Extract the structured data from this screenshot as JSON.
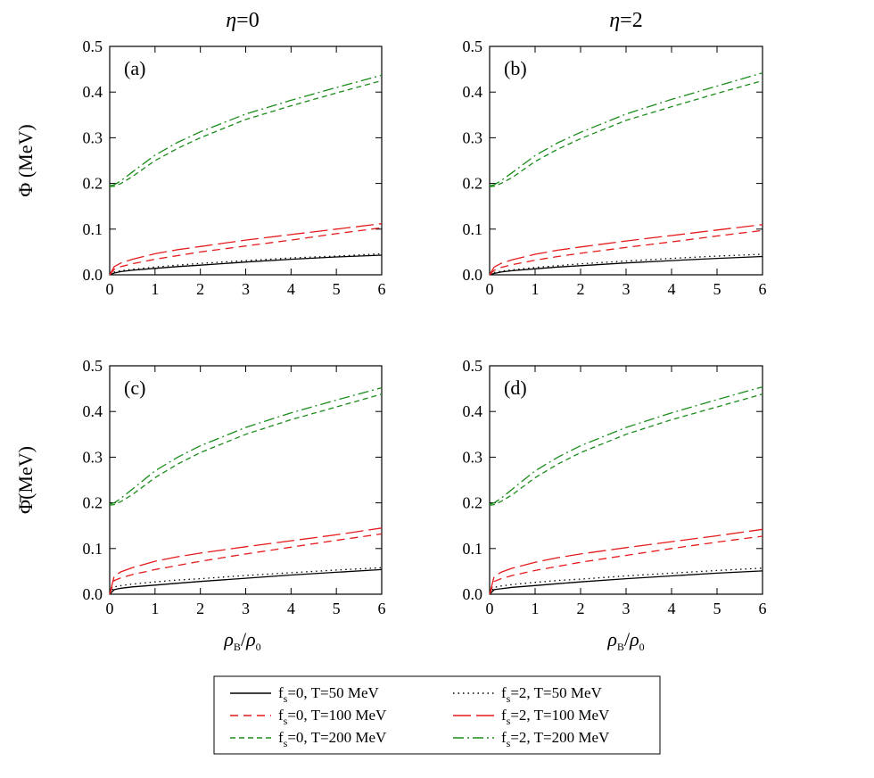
{
  "columns": [
    {
      "symbol": "η",
      "value": "=0"
    },
    {
      "symbol": "η",
      "value": "=2"
    }
  ],
  "y_labels": {
    "top": {
      "sym": "Φ",
      "unit": " (MeV)"
    },
    "bottom": {
      "sym": "Φ̄",
      "unit": "(MeV)"
    }
  },
  "x_label": {
    "rho": "ρ",
    "sub": "B",
    "slash": "/",
    "rho2": "ρ",
    "sub2": "0"
  },
  "legend": [
    {
      "prefix": "f",
      "sub": "s",
      "text": "=0, T=50 MeV",
      "color": "#000000",
      "dash": ""
    },
    {
      "prefix": "f",
      "sub": "s",
      "text": "=2, T=50 MeV",
      "color": "#000000",
      "dash": "1.5 4"
    },
    {
      "prefix": "f",
      "sub": "s",
      "text": "=0, T=100 MeV",
      "color": "#e41a1c",
      "dash": "9 6"
    },
    {
      "prefix": "f",
      "sub": "s",
      "text": "=2, T=100 MeV",
      "color": "#e41a1c",
      "dash": "20 6"
    },
    {
      "prefix": "f",
      "sub": "s",
      "text": "=0, T=200 MeV",
      "color": "#1a8c1a",
      "dash": "6 4"
    },
    {
      "prefix": "f",
      "sub": "s",
      "text": "=2, T=200 MeV",
      "color": "#1a8c1a",
      "dash": "12 4 2 4"
    }
  ],
  "chart_data": [
    {
      "type": "line",
      "label": "(a)",
      "xlim": [
        0,
        6
      ],
      "ylim": [
        0,
        0.5
      ],
      "xticks": [
        "0",
        "1",
        "2",
        "3",
        "4",
        "5",
        "6"
      ],
      "yticks": [
        "0.0",
        "0.1",
        "0.2",
        "0.3",
        "0.4",
        "0.5"
      ],
      "x": [
        0,
        0.1,
        0.25,
        0.5,
        1,
        1.5,
        2,
        3,
        4,
        5,
        6
      ],
      "series": [
        {
          "values": [
            0,
            0.004,
            0.007,
            0.01,
            0.014,
            0.018,
            0.021,
            0.028,
            0.034,
            0.039,
            0.043
          ]
        },
        {
          "values": [
            0,
            0.006,
            0.009,
            0.012,
            0.017,
            0.021,
            0.025,
            0.031,
            0.037,
            0.041,
            0.046
          ]
        },
        {
          "values": [
            0,
            0.012,
            0.018,
            0.024,
            0.034,
            0.042,
            0.05,
            0.063,
            0.076,
            0.09,
            0.103
          ]
        },
        {
          "values": [
            0,
            0.018,
            0.026,
            0.034,
            0.046,
            0.055,
            0.062,
            0.076,
            0.088,
            0.1,
            0.112
          ]
        },
        {
          "values": [
            0.193,
            0.194,
            0.2,
            0.215,
            0.25,
            0.277,
            0.3,
            0.34,
            0.37,
            0.398,
            0.425
          ]
        },
        {
          "values": [
            0.195,
            0.197,
            0.206,
            0.225,
            0.262,
            0.29,
            0.313,
            0.352,
            0.382,
            0.41,
            0.437
          ]
        }
      ]
    },
    {
      "type": "line",
      "label": "(b)",
      "xlim": [
        0,
        6
      ],
      "ylim": [
        0,
        0.5
      ],
      "xticks": [
        "0",
        "1",
        "2",
        "3",
        "4",
        "5",
        "6"
      ],
      "yticks": [
        "0.0",
        "0.1",
        "0.2",
        "0.3",
        "0.4",
        "0.5"
      ],
      "x": [
        0,
        0.1,
        0.25,
        0.5,
        1,
        1.5,
        2,
        3,
        4,
        5,
        6
      ],
      "series": [
        {
          "values": [
            0,
            0.003,
            0.006,
            0.009,
            0.013,
            0.017,
            0.02,
            0.026,
            0.031,
            0.036,
            0.04
          ]
        },
        {
          "values": [
            0,
            0.005,
            0.008,
            0.011,
            0.016,
            0.02,
            0.024,
            0.03,
            0.036,
            0.041,
            0.045
          ]
        },
        {
          "values": [
            0,
            0.01,
            0.016,
            0.022,
            0.032,
            0.04,
            0.047,
            0.06,
            0.072,
            0.085,
            0.097
          ]
        },
        {
          "values": [
            0,
            0.017,
            0.025,
            0.033,
            0.045,
            0.054,
            0.061,
            0.074,
            0.086,
            0.098,
            0.11
          ]
        },
        {
          "values": [
            0.193,
            0.194,
            0.2,
            0.213,
            0.248,
            0.275,
            0.298,
            0.338,
            0.368,
            0.397,
            0.425
          ]
        },
        {
          "values": [
            0.195,
            0.197,
            0.206,
            0.224,
            0.261,
            0.289,
            0.312,
            0.352,
            0.384,
            0.413,
            0.442
          ]
        }
      ]
    },
    {
      "type": "line",
      "label": "(c)",
      "xlim": [
        0,
        6
      ],
      "ylim": [
        0,
        0.5
      ],
      "xticks": [
        "0",
        "1",
        "2",
        "3",
        "4",
        "5",
        "6"
      ],
      "yticks": [
        "0.0",
        "0.1",
        "0.2",
        "0.3",
        "0.4",
        "0.5"
      ],
      "x": [
        0,
        0.1,
        0.25,
        0.5,
        1,
        1.5,
        2,
        3,
        4,
        5,
        6
      ],
      "series": [
        {
          "values": [
            0,
            0.01,
            0.013,
            0.016,
            0.02,
            0.024,
            0.028,
            0.035,
            0.042,
            0.048,
            0.054
          ]
        },
        {
          "values": [
            0,
            0.016,
            0.019,
            0.022,
            0.027,
            0.031,
            0.034,
            0.041,
            0.047,
            0.053,
            0.058
          ]
        },
        {
          "values": [
            0,
            0.03,
            0.036,
            0.043,
            0.054,
            0.063,
            0.072,
            0.088,
            0.103,
            0.118,
            0.132
          ]
        },
        {
          "values": [
            0,
            0.04,
            0.049,
            0.058,
            0.072,
            0.082,
            0.09,
            0.104,
            0.117,
            0.13,
            0.145
          ]
        },
        {
          "values": [
            0.195,
            0.196,
            0.203,
            0.218,
            0.255,
            0.285,
            0.31,
            0.35,
            0.382,
            0.41,
            0.438
          ]
        },
        {
          "values": [
            0.197,
            0.2,
            0.21,
            0.23,
            0.27,
            0.3,
            0.325,
            0.365,
            0.397,
            0.425,
            0.452
          ]
        }
      ]
    },
    {
      "type": "line",
      "label": "(d)",
      "xlim": [
        0,
        6
      ],
      "ylim": [
        0,
        0.5
      ],
      "xticks": [
        "0",
        "1",
        "2",
        "3",
        "4",
        "5",
        "6"
      ],
      "yticks": [
        "0.0",
        "0.1",
        "0.2",
        "0.3",
        "0.4",
        "0.5"
      ],
      "x": [
        0,
        0.1,
        0.25,
        0.5,
        1,
        1.5,
        2,
        3,
        4,
        5,
        6
      ],
      "series": [
        {
          "values": [
            0,
            0.01,
            0.012,
            0.015,
            0.019,
            0.023,
            0.027,
            0.034,
            0.04,
            0.046,
            0.051
          ]
        },
        {
          "values": [
            0,
            0.015,
            0.018,
            0.021,
            0.026,
            0.03,
            0.033,
            0.04,
            0.046,
            0.052,
            0.057
          ]
        },
        {
          "values": [
            0,
            0.028,
            0.034,
            0.041,
            0.052,
            0.061,
            0.07,
            0.085,
            0.1,
            0.114,
            0.127
          ]
        },
        {
          "values": [
            0,
            0.039,
            0.048,
            0.057,
            0.07,
            0.08,
            0.088,
            0.102,
            0.115,
            0.128,
            0.142
          ]
        },
        {
          "values": [
            0.195,
            0.196,
            0.203,
            0.218,
            0.255,
            0.285,
            0.31,
            0.35,
            0.382,
            0.41,
            0.438
          ]
        },
        {
          "values": [
            0.197,
            0.2,
            0.21,
            0.23,
            0.27,
            0.3,
            0.325,
            0.365,
            0.397,
            0.426,
            0.454
          ]
        }
      ]
    }
  ]
}
